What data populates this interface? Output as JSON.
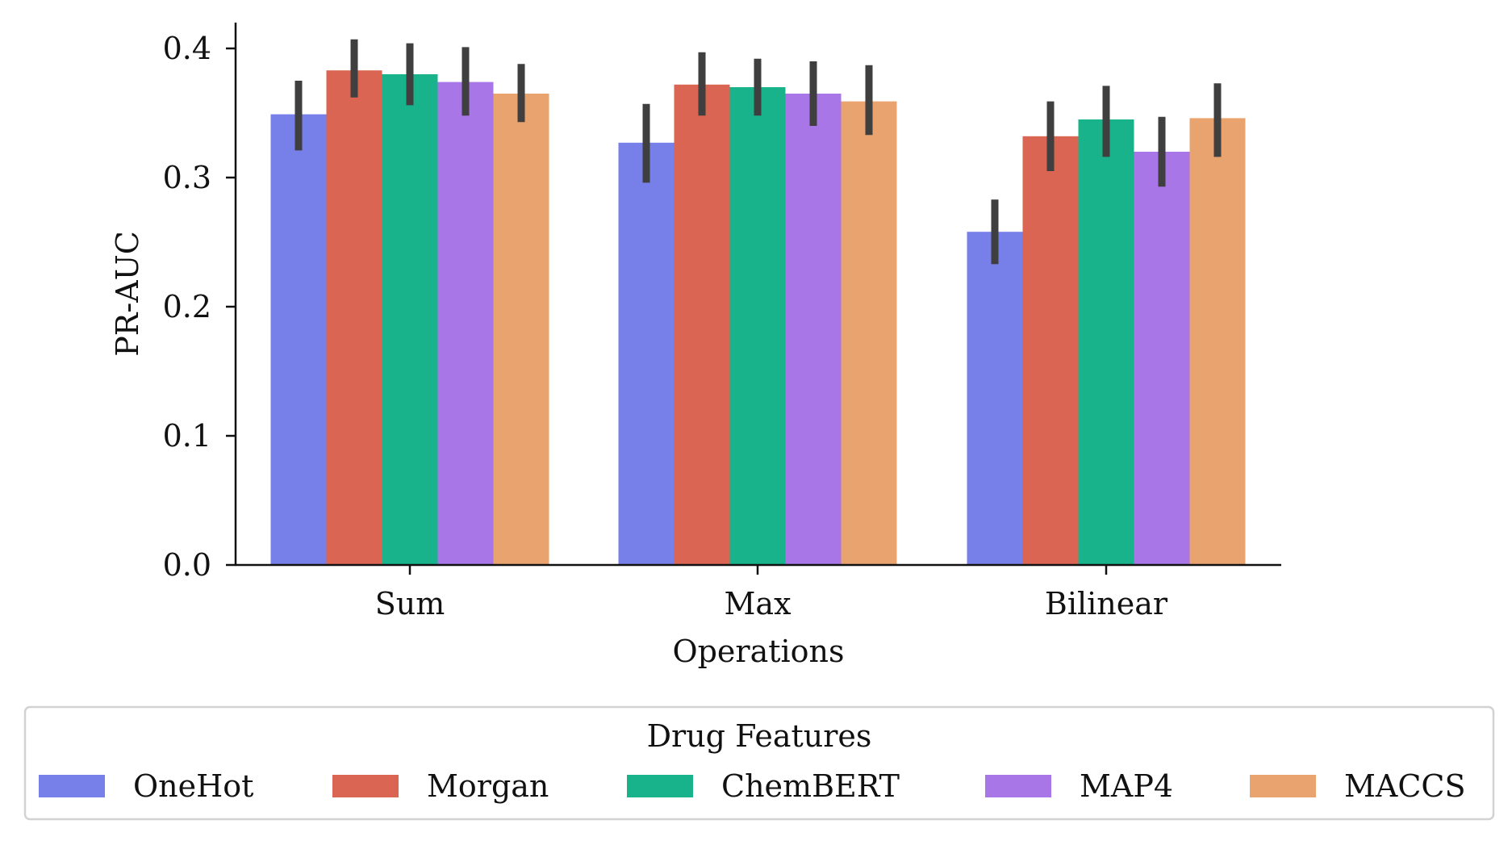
{
  "chart_data": {
    "type": "bar",
    "xlabel": "Operations",
    "ylabel": "PR-AUC",
    "ylim": [
      0,
      0.42
    ],
    "yticks": [
      "0.0",
      "0.1",
      "0.2",
      "0.3",
      "0.4"
    ],
    "ytick_values": [
      0.0,
      0.1,
      0.2,
      0.3,
      0.4
    ],
    "categories": [
      "Sum",
      "Max",
      "Bilinear"
    ],
    "legend": {
      "title": "Drug Features",
      "placement": "bottom"
    },
    "series": [
      {
        "name": "OneHot",
        "color": "#7780e8",
        "values": [
          0.349,
          0.327,
          0.258
        ],
        "err_low": [
          0.321,
          0.296,
          0.233
        ],
        "err_high": [
          0.375,
          0.357,
          0.283
        ]
      },
      {
        "name": "Morgan",
        "color": "#da6552",
        "values": [
          0.383,
          0.372,
          0.332
        ],
        "err_low": [
          0.362,
          0.348,
          0.305
        ],
        "err_high": [
          0.407,
          0.397,
          0.359
        ]
      },
      {
        "name": "ChemBERT",
        "color": "#18b38a",
        "values": [
          0.38,
          0.37,
          0.345
        ],
        "err_low": [
          0.356,
          0.348,
          0.316
        ],
        "err_high": [
          0.404,
          0.392,
          0.371
        ]
      },
      {
        "name": "MAP4",
        "color": "#a876e6",
        "values": [
          0.374,
          0.365,
          0.32
        ],
        "err_low": [
          0.348,
          0.34,
          0.293
        ],
        "err_high": [
          0.401,
          0.39,
          0.347
        ]
      },
      {
        "name": "MACCS",
        "color": "#e9a36f",
        "values": [
          0.365,
          0.359,
          0.346
        ],
        "err_low": [
          0.343,
          0.333,
          0.316
        ],
        "err_high": [
          0.388,
          0.387,
          0.373
        ]
      }
    ],
    "errorbar_color": "#3f3f3f",
    "grid": false
  }
}
